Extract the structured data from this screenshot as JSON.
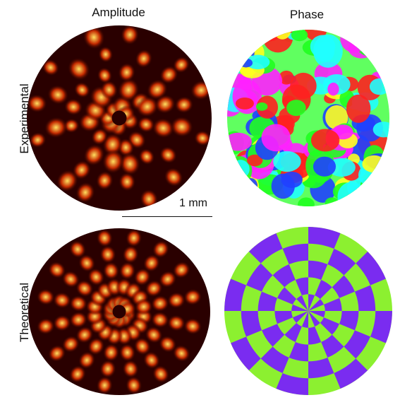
{
  "columns": {
    "amplitude": "Amplitude",
    "phase": "Phase"
  },
  "rows": {
    "experimental": "Experimental",
    "theoretical": "Theoretical"
  },
  "scalebar": {
    "label": "1 mm"
  },
  "colors": {
    "amp_dark": "#2a0000",
    "amp_mid": "#c42a00",
    "amp_bright": "#ffe060",
    "phase_purple": "#7a2cf0",
    "phase_green": "#8cf030",
    "phase_map": [
      "#ff2020",
      "#ffff20",
      "#20ff20",
      "#20ffff",
      "#2040ff",
      "#ff20ff"
    ]
  }
}
